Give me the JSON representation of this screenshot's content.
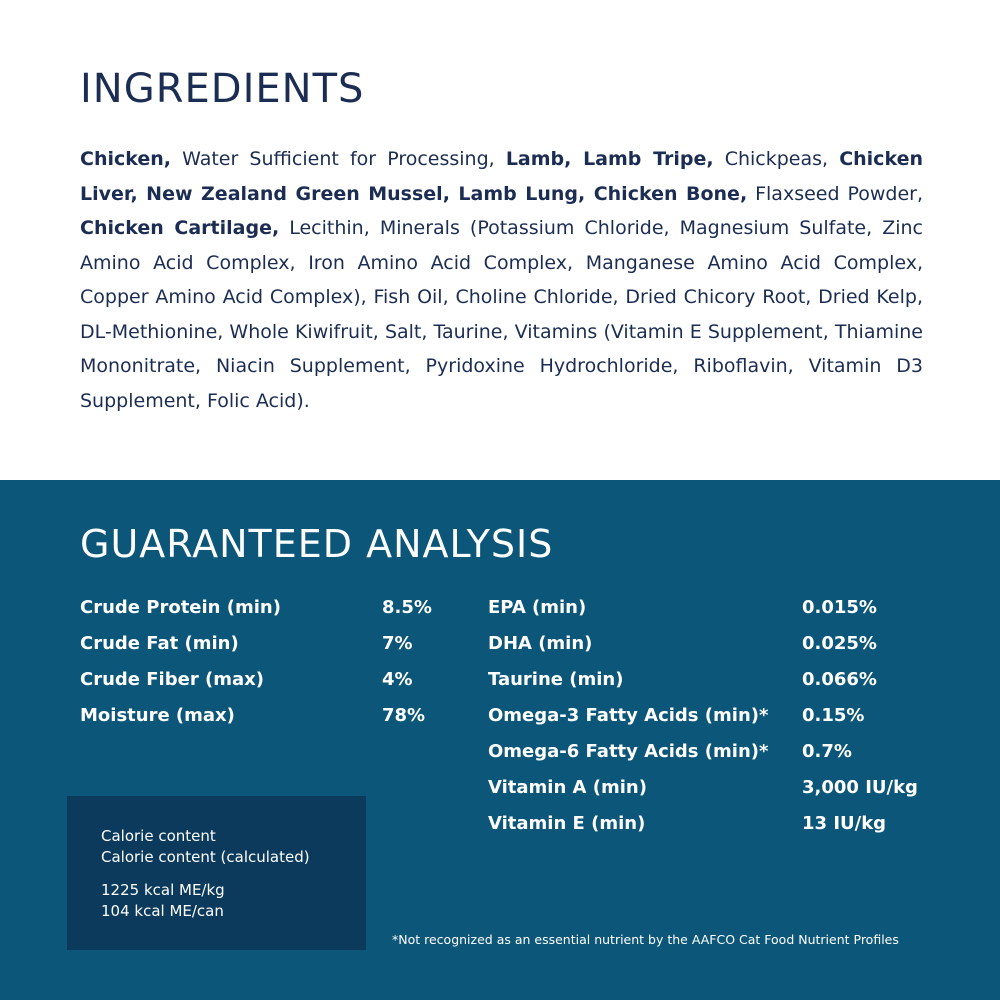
{
  "ingredients": {
    "title": "INGREDIENTS",
    "segments": [
      {
        "text": "Chicken,",
        "bold": true
      },
      {
        "text": " Water Sufficient for Processing, ",
        "bold": false
      },
      {
        "text": "Lamb, Lamb Tripe,",
        "bold": true
      },
      {
        "text": " Chickpeas, ",
        "bold": false
      },
      {
        "text": "Chicken Liver, New Zealand Green Mussel, Lamb Lung, Chicken Bone,",
        "bold": true
      },
      {
        "text": " Flaxseed Powder, ",
        "bold": false
      },
      {
        "text": "Chicken Cartilage,",
        "bold": true
      },
      {
        "text": " Lecithin, Minerals (Potassium Chloride, Magnesium Sulfate, Zinc Amino Acid Complex, Iron Amino Acid Complex, Manganese Amino Acid Complex, Copper Amino Acid Complex), Fish Oil, Choline Chloride, Dried Chicory Root, Dried Kelp, DL-Methionine, Whole Kiwifruit, Salt, Taurine, Vitamins (Vitamin E Supplement, Thiamine Mononitrate, Niacin Supplement, Pyridoxine Hydrochloride, Riboflavin, Vitamin D3 Supplement, Folic Acid).",
        "bold": false
      }
    ]
  },
  "analysis": {
    "title": "GUARANTEED ANALYSIS",
    "left": [
      {
        "label": "Crude Protein (min)",
        "value": "8.5%"
      },
      {
        "label": "Crude Fat (min)",
        "value": "7%"
      },
      {
        "label": "Crude Fiber (max)",
        "value": "4%"
      },
      {
        "label": "Moisture (max)",
        "value": "78%"
      }
    ],
    "right": [
      {
        "label": "EPA (min)",
        "value": "0.015%"
      },
      {
        "label": "DHA (min)",
        "value": "0.025%"
      },
      {
        "label": "Taurine (min)",
        "value": "0.066%"
      },
      {
        "label": "Omega-3 Fatty Acids (min)*",
        "value": "0.15%"
      },
      {
        "label": "Omega-6 Fatty Acids (min)*",
        "value": "0.7%"
      },
      {
        "label": "Vitamin A (min)",
        "value": "3,000 IU/kg"
      },
      {
        "label": "Vitamin E (min)",
        "value": "13 IU/kg"
      }
    ],
    "calorie": {
      "heading": "Calorie content",
      "subheading": "Calorie content (calculated)",
      "per_kg": "1225 kcal ME/kg",
      "per_can": "104 kcal ME/can"
    },
    "footnote": "*Not recognized as an essential nutrient by the AAFCO Cat Food Nutrient Profiles"
  },
  "colors": {
    "text_navy": "#1b2d52",
    "analysis_bg": "#0b5679",
    "calorie_box_bg": "#0b3a5c"
  }
}
